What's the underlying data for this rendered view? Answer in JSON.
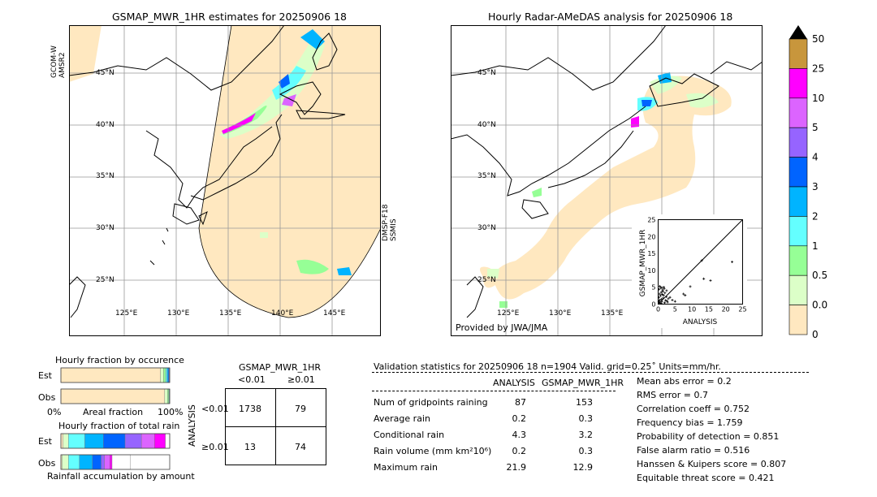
{
  "left_map": {
    "title": "GSMAP_MWR_1HR estimates for 20250906 18",
    "sensor_left": [
      "GCOM-W",
      "AMSR2"
    ],
    "sensor_right": [
      "DMSP-F18",
      "SSMIS"
    ],
    "lat_labels": [
      "45°N",
      "40°N",
      "35°N",
      "30°N",
      "25°N"
    ],
    "lon_labels": [
      "125°E",
      "130°E",
      "135°E",
      "140°E",
      "145°E"
    ]
  },
  "right_map": {
    "title": "Hourly Radar-AMeDAS analysis for 20250906 18",
    "credit": "Provided by JWA/JMA",
    "lat_labels": [
      "45°N",
      "40°N",
      "35°N",
      "30°N",
      "25°N"
    ],
    "lon_labels": [
      "125°E",
      "130°E",
      "135°E"
    ]
  },
  "colorbar": {
    "labels": [
      "50",
      "25",
      "10",
      "5",
      "4",
      "3",
      "2",
      "1",
      "0.5",
      "0.01",
      "0"
    ],
    "colors": [
      "#c8963c",
      "#ff00ff",
      "#dc64ff",
      "#9664ff",
      "#0064ff",
      "#00b4ff",
      "#64ffff",
      "#96ff96",
      "#dcffc8",
      "#ffe8c0"
    ]
  },
  "scatter": {
    "ylabel": "GSMAP_MWR_1HR",
    "xlabel": "ANALYSIS",
    "ticks": [
      "0",
      "5",
      "10",
      "15",
      "20",
      "25"
    ]
  },
  "fraction_occurrence": {
    "title": "Hourly fraction by occurence",
    "rows": [
      "Est",
      "Obs"
    ],
    "xlabel_left": "0%",
    "xlabel_mid": "Areal fraction",
    "xlabel_right": "100%"
  },
  "fraction_total": {
    "title": "Hourly fraction of total rain",
    "rows": [
      "Est",
      "Obs"
    ],
    "footer": "Rainfall accumulation by amount"
  },
  "contingency": {
    "title": "GSMAP_MWR_1HR",
    "col_labels": [
      "<0.01",
      "≥0.01"
    ],
    "row_labels": [
      "<0.01",
      "≥0.01"
    ],
    "side_label": "ANALYSIS",
    "cells": [
      [
        "1738",
        "79"
      ],
      [
        "13",
        "74"
      ]
    ]
  },
  "validation": {
    "header": "Validation statistics for 20250906 18  n=1904 Valid. grid=0.25˚ Units=mm/hr.",
    "col_analysis": "ANALYSIS",
    "col_gsmap": "GSMAP_MWR_1HR",
    "rows": [
      {
        "label": "Num of gridpoints raining",
        "a": "87",
        "g": "153"
      },
      {
        "label": "Average rain",
        "a": "0.2",
        "g": "0.3"
      },
      {
        "label": "Conditional rain",
        "a": "4.3",
        "g": "3.2"
      },
      {
        "label": "Rain volume (mm km²10⁶)",
        "a": "0.2",
        "g": "0.3"
      },
      {
        "label": "Maximum rain",
        "a": "21.9",
        "g": "12.9"
      }
    ],
    "scores": [
      "Mean abs error =    0.2",
      "RMS error =    0.7",
      "Correlation coeff =  0.752",
      "Frequency bias =  1.759",
      "Probability of detection =  0.851",
      "False alarm ratio =  0.516",
      "Hanssen & Kuipers score =  0.807",
      "Equitable threat score =  0.421"
    ]
  },
  "chart_data": [
    {
      "type": "scatter",
      "xlabel": "ANALYSIS",
      "ylabel": "GSMAP_MWR_1HR",
      "xlim": [
        0,
        25
      ],
      "ylim": [
        0,
        25
      ],
      "points": [
        [
          0.3,
          0.5
        ],
        [
          0.5,
          1.2
        ],
        [
          0.7,
          2.5
        ],
        [
          0.9,
          3.5
        ],
        [
          1.1,
          0.8
        ],
        [
          1.3,
          4.2
        ],
        [
          1.5,
          1.8
        ],
        [
          0.4,
          3.0
        ],
        [
          0.8,
          4.8
        ],
        [
          1.6,
          2.6
        ],
        [
          2.0,
          3.3
        ],
        [
          2.2,
          1.1
        ],
        [
          2.5,
          4.0
        ],
        [
          2.8,
          0.6
        ],
        [
          0.2,
          2.0
        ],
        [
          1.9,
          0.4
        ],
        [
          1.0,
          1.5
        ],
        [
          0.6,
          0.3
        ],
        [
          1.4,
          3.8
        ],
        [
          2.4,
          2.2
        ],
        [
          3.0,
          1.6
        ],
        [
          0.3,
          4.4
        ],
        [
          1.2,
          2.9
        ],
        [
          1.8,
          4.6
        ],
        [
          2.6,
          0.9
        ],
        [
          0.9,
          0.2
        ],
        [
          3.5,
          2.0
        ],
        [
          4.2,
          1.2
        ],
        [
          5.0,
          0.8
        ],
        [
          7.5,
          3.0
        ],
        [
          8.0,
          2.6
        ],
        [
          9.5,
          5.2
        ],
        [
          13.5,
          7.5
        ],
        [
          15.5,
          7.0
        ],
        [
          21.9,
          12.5
        ],
        [
          12.9,
          12.9
        ],
        [
          0.5,
          5.3
        ],
        [
          1.7,
          5.0
        ],
        [
          0.2,
          0.8
        ],
        [
          1.1,
          4.9
        ]
      ]
    },
    {
      "type": "bar",
      "title": "Hourly fraction by occurence",
      "categories": [
        "Est",
        "Obs"
      ],
      "series": [
        {
          "values": [
            0.915,
            0.954
          ]
        },
        {
          "values": [
            0.028,
            0.025
          ]
        },
        {
          "values": [
            0.02,
            0.012
          ]
        },
        {
          "values": [
            0.013,
            0.005
          ]
        },
        {
          "values": [
            0.01,
            0.002
          ]
        },
        {
          "values": [
            0.008,
            0.001
          ]
        },
        {
          "values": [
            0.006,
            0.001
          ]
        }
      ]
    },
    {
      "type": "bar",
      "title": "Hourly fraction of total rain",
      "categories": [
        "Est",
        "Obs"
      ],
      "series": [
        {
          "values": [
            0.02,
            0.01
          ]
        },
        {
          "values": [
            0.05,
            0.06
          ]
        },
        {
          "values": [
            0.15,
            0.1
          ]
        },
        {
          "values": [
            0.17,
            0.12
          ]
        },
        {
          "values": [
            0.2,
            0.08
          ]
        },
        {
          "values": [
            0.15,
            0.03
          ]
        },
        {
          "values": [
            0.12,
            0.05
          ]
        },
        {
          "values": [
            0.1,
            0.02
          ]
        },
        {
          "values": [
            0.04,
            0.17
          ]
        }
      ]
    }
  ]
}
